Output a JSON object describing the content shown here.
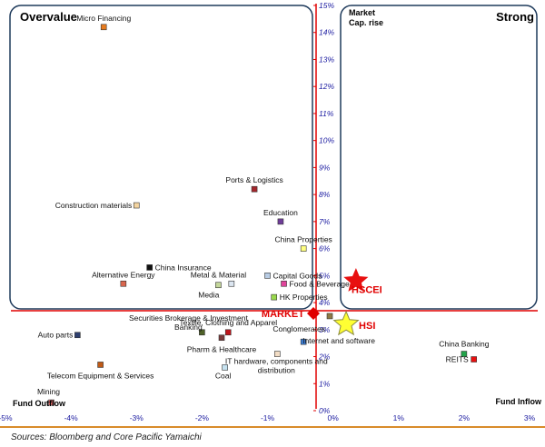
{
  "chart_data": {
    "type": "scatter",
    "xlim": [
      -5,
      3
    ],
    "ylim": [
      0,
      15
    ],
    "x_ticks": [
      "-5%",
      "-4%",
      "-3%",
      "-2%",
      "-1%",
      "0%",
      "1%",
      "2%",
      "3%"
    ],
    "y_ticks": [
      "0%",
      "1%",
      "2%",
      "3%",
      "4%",
      "5%",
      "6%",
      "7%",
      "8%",
      "9%",
      "10%",
      "11%",
      "12%",
      "13%",
      "14%",
      "15%"
    ],
    "market": {
      "label": "MARKET",
      "x": -0.3,
      "y": 3.6
    },
    "quadrants": {
      "top_left": "Overvalue",
      "top_right": "Strong",
      "top_right_sub": "Market\nCap. rise",
      "bottom_left": "Fund Outflow",
      "bottom_right": "Fund Inflow"
    },
    "points": [
      {
        "name": "Micro Financing",
        "x": -3.5,
        "y": 14.2,
        "color": "#e67a1e",
        "lx": 0,
        "ly": -7,
        "anchor": "middle"
      },
      {
        "name": "Ports & Logistics",
        "x": -1.2,
        "y": 8.2,
        "color": "#a3262b",
        "lx": 0,
        "ly": -7,
        "anchor": "middle"
      },
      {
        "name": "Construction materials",
        "x": -3.0,
        "y": 7.6,
        "color": "#f3d4a0",
        "lx": -5,
        "ly": 3,
        "anchor": "end"
      },
      {
        "name": "Education",
        "x": -0.8,
        "y": 7.0,
        "color": "#6f3d99",
        "lx": 0,
        "ly": -7,
        "anchor": "middle"
      },
      {
        "name": "China Properties",
        "x": -0.45,
        "y": 6.0,
        "color": "#ffff80",
        "lx": 0,
        "ly": -7,
        "anchor": "middle"
      },
      {
        "name": "China Insurance",
        "x": -2.8,
        "y": 5.3,
        "color": "#111111",
        "lx": 6,
        "ly": 3,
        "anchor": "start"
      },
      {
        "name": "Alternative Energy",
        "x": -3.2,
        "y": 4.7,
        "color": "#d9664e",
        "lx": 0,
        "ly": -7,
        "anchor": "middle"
      },
      {
        "name": "Capital Goods",
        "x": -1.0,
        "y": 5.0,
        "color": "#b8cce4",
        "lx": 6,
        "ly": 3,
        "anchor": "start"
      },
      {
        "name": "Metal & Material",
        "x": -1.75,
        "y": 4.65,
        "color": "#c4d79b",
        "lx": 0,
        "ly": -8,
        "anchor": "middle"
      },
      {
        "name": "Media",
        "x": -1.55,
        "y": 4.7,
        "color": "#dce6f1",
        "lx": -25,
        "ly": 15,
        "anchor": "middle"
      },
      {
        "name": "Food & Beverage",
        "x": -0.75,
        "y": 4.7,
        "color": "#e0449b",
        "lx": 6,
        "ly": 3,
        "anchor": "start"
      },
      {
        "name": "HK Properties",
        "x": -0.9,
        "y": 4.2,
        "color": "#99d94c",
        "lx": 6,
        "ly": 3,
        "anchor": "start"
      },
      {
        "name": "Textile, Clothing and Apparel",
        "x": -1.6,
        "y": 2.9,
        "color": "#c0141a",
        "lx": 0,
        "ly": -8,
        "anchor": "middle"
      },
      {
        "name": "Securities Brokerage & Investment\nBanking",
        "x": -2.0,
        "y": 2.9,
        "color": "#4f6228",
        "lx": -15,
        "ly": -13,
        "anchor": "middle"
      },
      {
        "name": "Pharm & Healthcare",
        "x": -1.7,
        "y": 2.7,
        "color": "#7a3a3a",
        "lx": 0,
        "ly": 16,
        "anchor": "middle"
      },
      {
        "name": "Auto parts",
        "x": -3.9,
        "y": 2.8,
        "color": "#2e3f6e",
        "lx": -5,
        "ly": 3,
        "anchor": "end"
      },
      {
        "name": "Conglomerates",
        "x": -0.45,
        "y": 2.55,
        "color": "#3d7fd6",
        "lx": -5,
        "ly": -11,
        "anchor": "middle"
      },
      {
        "name": "Internet and software",
        "x": -0.05,
        "y": 3.5,
        "color": "#8e7a45",
        "lx": 10,
        "ly": 30,
        "anchor": "middle"
      },
      {
        "name": "Telecom Equipment & Services",
        "x": -3.55,
        "y": 1.7,
        "color": "#c05a16",
        "lx": 0,
        "ly": 15,
        "anchor": "middle"
      },
      {
        "name": "IT hardware, components and\ndistribution",
        "x": -0.85,
        "y": 2.1,
        "color": "#f2dcc4",
        "lx": -1,
        "ly": 11,
        "anchor": "middle"
      },
      {
        "name": "Coal",
        "x": -1.65,
        "y": 1.6,
        "color": "#c6e2f0",
        "lx": -2,
        "ly": 12,
        "anchor": "middle"
      },
      {
        "name": "Mining",
        "x": -4.3,
        "y": 0.3,
        "color": "#e46c6c",
        "lx": -3,
        "ly": -9,
        "anchor": "middle"
      },
      {
        "name": "China Banking",
        "x": 2.0,
        "y": 2.1,
        "color": "#22a34a",
        "lx": 0,
        "ly": -8,
        "anchor": "middle"
      },
      {
        "name": "REITS",
        "x": 2.15,
        "y": 1.9,
        "color": "#e81010",
        "lx": -6,
        "ly": 3,
        "anchor": "end"
      }
    ],
    "indices": [
      {
        "name": "HSCEI",
        "x": 0.35,
        "y": 4.8,
        "color": "#e81010",
        "stroke": "#e81010",
        "label_color": "#e81010",
        "size": 13,
        "lx": 12,
        "ly": 13,
        "anchor": "middle"
      },
      {
        "name": "HSI",
        "x": 0.2,
        "y": 3.2,
        "color": "#ffff33",
        "stroke": "#8b8b40",
        "label_color": "#e81010",
        "size": 14,
        "lx": 14,
        "ly": 5,
        "anchor": "start"
      }
    ]
  },
  "source": "Sources: Bloomberg and Core Pacific Yamaichi"
}
